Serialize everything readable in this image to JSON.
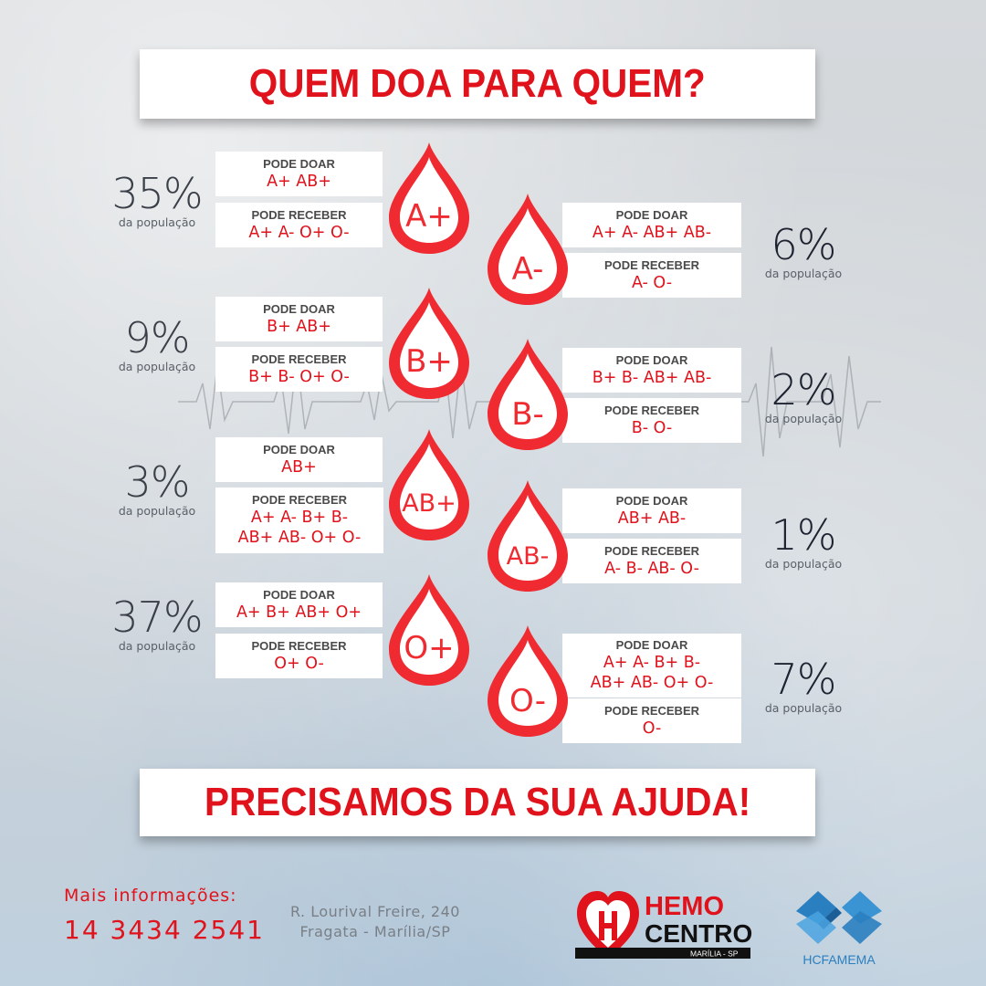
{
  "header": {
    "title": "QUEM DOA PARA QUEM?"
  },
  "footer_banner": {
    "title": "PRECISAMOS DA SUA AJUDA!"
  },
  "labels": {
    "pode_doar": "PODE DOAR",
    "pode_receber": "PODE RECEBER",
    "da_populacao": "da população"
  },
  "blood_types": [
    {
      "type": "A+",
      "percent": "35%",
      "pode_doar": "A+ AB+",
      "pode_receber": "A+ A- O+ O-"
    },
    {
      "type": "A-",
      "percent": "6%",
      "pode_doar": "A+ A- AB+ AB-",
      "pode_receber": "A- O-"
    },
    {
      "type": "B+",
      "percent": "9%",
      "pode_doar": "B+ AB+",
      "pode_receber": "B+ B- O+ O-"
    },
    {
      "type": "B-",
      "percent": "2%",
      "pode_doar": "B+ B- AB+ AB-",
      "pode_receber": "B- O-"
    },
    {
      "type": "AB+",
      "percent": "3%",
      "pode_doar": "AB+",
      "pode_receber_l1": "A+ A- B+ B-",
      "pode_receber_l2": "AB+ AB- O+ O-"
    },
    {
      "type": "AB-",
      "percent": "1%",
      "pode_doar": "AB+ AB-",
      "pode_receber": "A- B- AB- O-"
    },
    {
      "type": "O+",
      "percent": "37%",
      "pode_doar": "A+ B+ AB+ O+",
      "pode_receber": "O+ O-"
    },
    {
      "type": "O-",
      "percent": "7%",
      "pode_doar_l1": "A+ A- B+ B-",
      "pode_doar_l2": "AB+ AB- O+ O-",
      "pode_receber": "O-"
    }
  ],
  "contact": {
    "label": "Mais informações:",
    "phone": "14 3434 2541"
  },
  "address": {
    "line1": "R. Lourival Freire, 240",
    "line2": "Fragata - Marília/SP"
  },
  "logos": {
    "hemo_line1": "HEMO",
    "hemo_line2": "CENTRO",
    "hemo_city": "MARÍLIA - SP",
    "hc_name": "HCFAMEMA"
  },
  "colors": {
    "accent_red": "#e0121b",
    "drop_red": "#ef2a30",
    "hc_blue": "#2a7fc0"
  }
}
